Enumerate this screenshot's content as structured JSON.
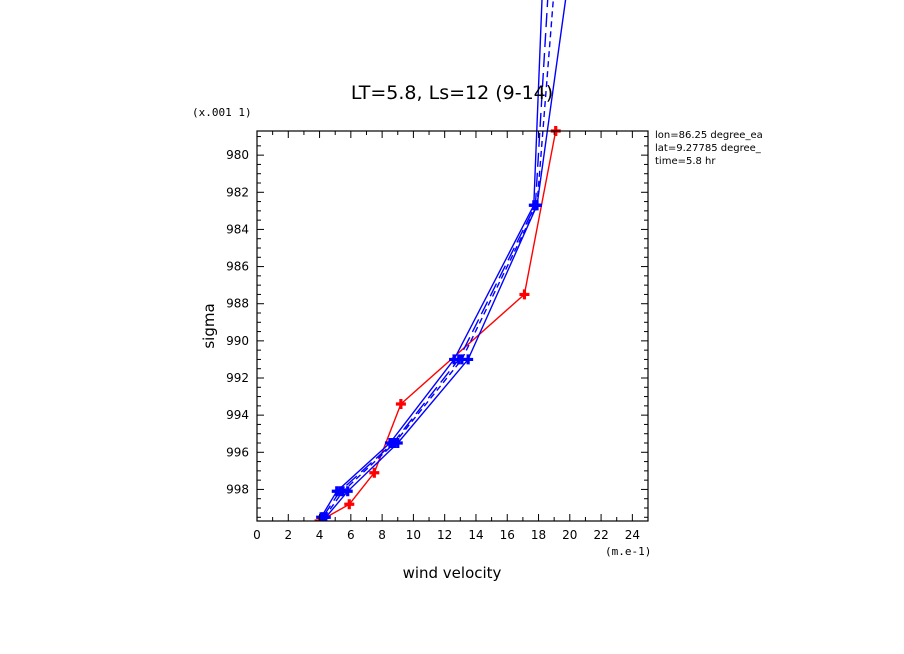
{
  "chart_data": {
    "type": "line",
    "title": "LT=5.8, Ls=12 (9-14)",
    "xlabel": "wind velocity",
    "ylabel": "sigma",
    "x_unit": "(m.e-1)",
    "y_unit": "(x.001 1)",
    "xlim": [
      0,
      25
    ],
    "ylim": [
      999.7,
      978.7
    ],
    "x_ticks": [
      0,
      2,
      4,
      6,
      8,
      10,
      12,
      14,
      16,
      18,
      20,
      22,
      24
    ],
    "y_ticks": [
      980,
      982,
      984,
      986,
      988,
      990,
      992,
      994,
      996,
      998
    ],
    "y_reversed": true,
    "annotations": [
      "lon=86.25 degree_ea",
      "lat=9.27785 degree_",
      "time=5.8 hr"
    ],
    "colors": {
      "observed": "#ff0000",
      "model": "#0000ff",
      "axes": "#000000"
    },
    "series": [
      {
        "style": "solid",
        "color": "#ff0000",
        "marker": "cross",
        "x": [
          4.0,
          5.9,
          7.5,
          9.2,
          17.1,
          19.1
        ],
        "y": [
          999.7,
          998.8,
          997.1,
          993.4,
          987.5,
          978.7
        ]
      },
      {
        "style": "solid",
        "color": "#0000ff",
        "marker": "cross",
        "x": [
          4.4,
          5.8,
          9.0,
          13.5,
          17.9,
          20.0
        ],
        "y": [
          999.5,
          998.1,
          995.5,
          991.0,
          982.7,
          970.0
        ]
      },
      {
        "style": "solid",
        "color": "#0000ff",
        "marker": "cross",
        "x": [
          4.1,
          5.1,
          8.5,
          12.6,
          17.7,
          18.3
        ],
        "y": [
          999.5,
          998.1,
          995.5,
          991.0,
          982.7,
          970.0
        ]
      },
      {
        "style": "dashed",
        "color": "#0000ff",
        "marker": "cross",
        "x": [
          4.3,
          5.5,
          8.8,
          13.1,
          17.9,
          19.1
        ],
        "y": [
          999.5,
          998.1,
          995.5,
          991.0,
          982.7,
          970.0
        ]
      },
      {
        "style": "longdash",
        "color": "#0000ff",
        "marker": "cross",
        "x": [
          4.2,
          5.3,
          8.7,
          12.9,
          17.8,
          18.7
        ],
        "y": [
          999.5,
          998.1,
          995.5,
          991.0,
          982.7,
          970.0
        ]
      }
    ]
  }
}
